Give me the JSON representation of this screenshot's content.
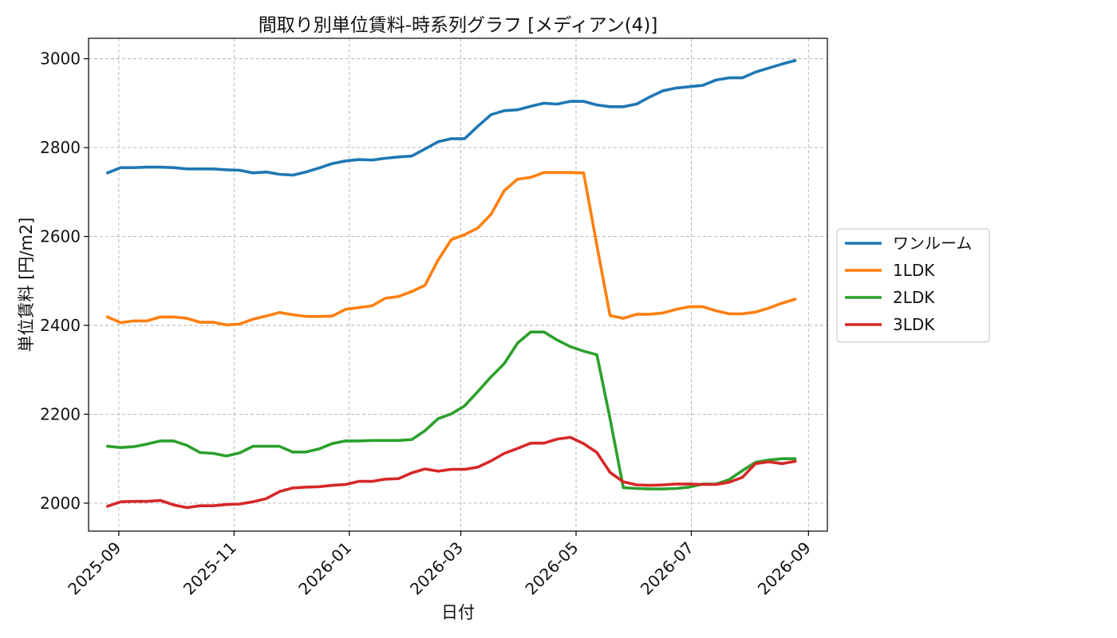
{
  "chart_data": {
    "type": "line",
    "title": "間取り別単位賃料-時系列グラフ [メディアン(4)]",
    "xlabel": "日付",
    "ylabel": "単位賃料 [円/m2]",
    "ylim": [
      1937,
      3046
    ],
    "xlim": [
      "2025-08-16",
      "2026-09-11"
    ],
    "grid": true,
    "grid_style": "dashed",
    "legend_position": "center-right",
    "x_ticks": [
      "2025-09",
      "2025-11",
      "2026-01",
      "2026-03",
      "2026-05",
      "2026-07",
      "2026-09"
    ],
    "y_ticks": [
      2000,
      2200,
      2400,
      2600,
      2800,
      3000
    ],
    "x": [
      "2025-08-26",
      "2025-09-02",
      "2025-09-09",
      "2025-09-16",
      "2025-09-23",
      "2025-09-30",
      "2025-10-07",
      "2025-10-14",
      "2025-10-21",
      "2025-10-28",
      "2025-11-04",
      "2025-11-11",
      "2025-11-18",
      "2025-11-25",
      "2025-12-02",
      "2025-12-09",
      "2025-12-16",
      "2025-12-23",
      "2025-12-30",
      "2026-01-06",
      "2026-01-13",
      "2026-01-20",
      "2026-01-27",
      "2026-02-03",
      "2026-02-10",
      "2026-02-17",
      "2026-02-24",
      "2026-03-03",
      "2026-03-10",
      "2026-03-17",
      "2026-03-24",
      "2026-03-31",
      "2026-04-07",
      "2026-04-14",
      "2026-04-21",
      "2026-04-28",
      "2026-05-05",
      "2026-05-12",
      "2026-05-19",
      "2026-05-26",
      "2026-06-02",
      "2026-06-09",
      "2026-06-16",
      "2026-06-23",
      "2026-06-30",
      "2026-07-07",
      "2026-07-14",
      "2026-07-21",
      "2026-07-28",
      "2026-08-04",
      "2026-08-11",
      "2026-08-18",
      "2026-08-25"
    ],
    "series": [
      {
        "name": "ワンルーム",
        "color": "#1f77b4",
        "values": [
          2743,
          2755,
          2755,
          2756,
          2756,
          2755,
          2752,
          2752,
          2752,
          2750,
          2749,
          2743,
          2745,
          2740,
          2738,
          2745,
          2754,
          2764,
          2770,
          2773,
          2772,
          2776,
          2779,
          2781,
          2797,
          2813,
          2820,
          2820,
          2848,
          2874,
          2883,
          2885,
          2893,
          2900,
          2898,
          2904,
          2904,
          2896,
          2892,
          2892,
          2898,
          2914,
          2928,
          2934,
          2937,
          2940,
          2952,
          2957,
          2957,
          2970,
          2979,
          2988,
          2996
        ]
      },
      {
        "name": "1LDK",
        "color": "#ff7f0e",
        "values": [
          2419,
          2406,
          2410,
          2410,
          2419,
          2419,
          2416,
          2407,
          2407,
          2401,
          2403,
          2414,
          2421,
          2429,
          2424,
          2420,
          2420,
          2421,
          2436,
          2440,
          2444,
          2461,
          2465,
          2476,
          2490,
          2547,
          2593,
          2604,
          2619,
          2650,
          2703,
          2729,
          2733,
          2744,
          2744,
          2744,
          2743,
          2580,
          2422,
          2416,
          2425,
          2425,
          2428,
          2436,
          2442,
          2442,
          2433,
          2426,
          2426,
          2430,
          2439,
          2450,
          2459
        ]
      },
      {
        "name": "2LDK",
        "color": "#2ca02c",
        "values": [
          2128,
          2125,
          2127,
          2133,
          2140,
          2140,
          2130,
          2114,
          2112,
          2106,
          2113,
          2128,
          2128,
          2128,
          2115,
          2115,
          2122,
          2134,
          2140,
          2140,
          2141,
          2141,
          2141,
          2143,
          2163,
          2190,
          2201,
          2219,
          2251,
          2284,
          2314,
          2360,
          2385,
          2385,
          2367,
          2352,
          2342,
          2334,
          2190,
          2035,
          2033,
          2032,
          2032,
          2033,
          2036,
          2043,
          2043,
          2053,
          2073,
          2092,
          2097,
          2100,
          2100
        ]
      },
      {
        "name": "3LDK",
        "color": "#d62728",
        "values": [
          1993,
          2003,
          2004,
          2004,
          2006,
          1996,
          1990,
          1994,
          1994,
          1997,
          1998,
          2003,
          2010,
          2026,
          2034,
          2036,
          2037,
          2040,
          2042,
          2049,
          2049,
          2054,
          2055,
          2068,
          2077,
          2072,
          2076,
          2076,
          2081,
          2095,
          2112,
          2123,
          2135,
          2135,
          2144,
          2148,
          2134,
          2114,
          2069,
          2048,
          2041,
          2040,
          2041,
          2043,
          2043,
          2042,
          2042,
          2047,
          2058,
          2089,
          2093,
          2089,
          2094
        ]
      }
    ]
  }
}
